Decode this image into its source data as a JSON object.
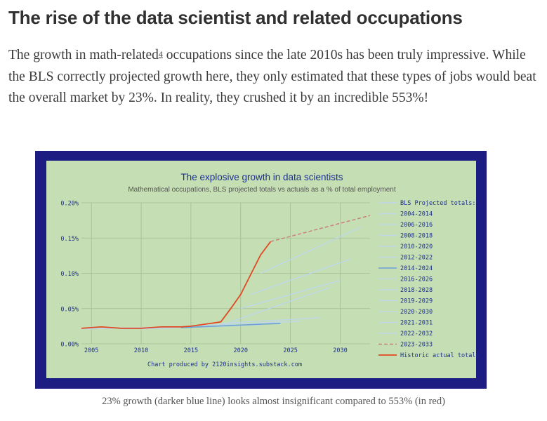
{
  "article": {
    "title": "The rise of the data scientist and related occupations",
    "para_before": "The growth in math-related",
    "footnote": "4",
    "para_after": " occupations since the late 2010s has been truly impressive. While the BLS correctly projected growth here, they only estimated that these types of jobs would beat the overall market by 23%. In reality, they crushed it by an incredible 553%!",
    "caption": "23% growth (darker blue line) looks almost insignificant compared to 553% (in red)"
  },
  "colors": {
    "frame": "#1c1c82",
    "plot_bg": "#c5deb4",
    "grid": "#a4bd91",
    "red": "#e04a22",
    "light_blue": "#bcd6ec",
    "dark_blue": "#6a9fd8",
    "dashed": "#c98080"
  },
  "chart_data": {
    "type": "line",
    "title": "The explosive growth in data scientists",
    "subtitle": "Mathematical occupations, BLS projected totals vs actuals as a % of total employment",
    "credit": "Chart produced by 2120insights.substack.com",
    "xlim": [
      2004,
      2033
    ],
    "ylim": [
      0,
      0.2
    ],
    "xticks": [
      2005,
      2010,
      2015,
      2020,
      2025,
      2030
    ],
    "xtick_labels": [
      "2005",
      "2010",
      "2015",
      "2020",
      "2025",
      "2030"
    ],
    "yticks": [
      0,
      0.05,
      0.1,
      0.15,
      0.2
    ],
    "ytick_labels": [
      "0.00%",
      "0.05%",
      "0.10%",
      "0.15%",
      "0.20%"
    ],
    "legend_title": "BLS Projected totals:",
    "series": [
      {
        "name": "2004-2014",
        "style": "light",
        "points": [
          [
            2004,
            0.021
          ],
          [
            2014,
            0.024
          ]
        ]
      },
      {
        "name": "2006-2016",
        "style": "light",
        "points": [
          [
            2006,
            0.022
          ],
          [
            2016,
            0.024
          ]
        ]
      },
      {
        "name": "2008-2018",
        "style": "light",
        "points": [
          [
            2008,
            0.021
          ],
          [
            2018,
            0.025
          ]
        ]
      },
      {
        "name": "2010-2020",
        "style": "light",
        "points": [
          [
            2010,
            0.021
          ],
          [
            2020,
            0.026
          ]
        ]
      },
      {
        "name": "2012-2022",
        "style": "light",
        "points": [
          [
            2012,
            0.022
          ],
          [
            2022,
            0.027
          ]
        ]
      },
      {
        "name": "2014-2024",
        "style": "dark",
        "points": [
          [
            2014,
            0.023
          ],
          [
            2024,
            0.029
          ]
        ]
      },
      {
        "name": "2016-2026",
        "style": "light",
        "points": [
          [
            2016,
            0.026
          ],
          [
            2026,
            0.032
          ]
        ]
      },
      {
        "name": "2018-2028",
        "style": "light",
        "points": [
          [
            2018,
            0.029
          ],
          [
            2028,
            0.037
          ]
        ]
      },
      {
        "name": "2019-2029",
        "style": "light",
        "points": [
          [
            2019,
            0.031
          ],
          [
            2029,
            0.08
          ]
        ]
      },
      {
        "name": "2020-2030",
        "style": "light",
        "points": [
          [
            2020,
            0.05
          ],
          [
            2030,
            0.09
          ]
        ]
      },
      {
        "name": "2021-2031",
        "style": "light",
        "points": [
          [
            2021,
            0.07
          ],
          [
            2031,
            0.12
          ]
        ]
      },
      {
        "name": "2022-2032",
        "style": "light",
        "points": [
          [
            2022,
            0.1
          ],
          [
            2032,
            0.165
          ]
        ]
      },
      {
        "name": "2023-2033",
        "style": "dashed",
        "points": [
          [
            2023,
            0.145
          ],
          [
            2033,
            0.182
          ]
        ]
      },
      {
        "name": "Historic actual totals",
        "style": "red",
        "points": [
          [
            2004,
            0.022
          ],
          [
            2005,
            0.023
          ],
          [
            2006,
            0.024
          ],
          [
            2007,
            0.023
          ],
          [
            2008,
            0.022
          ],
          [
            2009,
            0.022
          ],
          [
            2010,
            0.022
          ],
          [
            2011,
            0.023
          ],
          [
            2012,
            0.024
          ],
          [
            2013,
            0.024
          ],
          [
            2014,
            0.024
          ],
          [
            2015,
            0.025
          ],
          [
            2016,
            0.027
          ],
          [
            2017,
            0.029
          ],
          [
            2018,
            0.031
          ],
          [
            2019,
            0.05
          ],
          [
            2020,
            0.07
          ],
          [
            2021,
            0.098
          ],
          [
            2022,
            0.126
          ],
          [
            2023,
            0.145
          ]
        ]
      }
    ]
  }
}
